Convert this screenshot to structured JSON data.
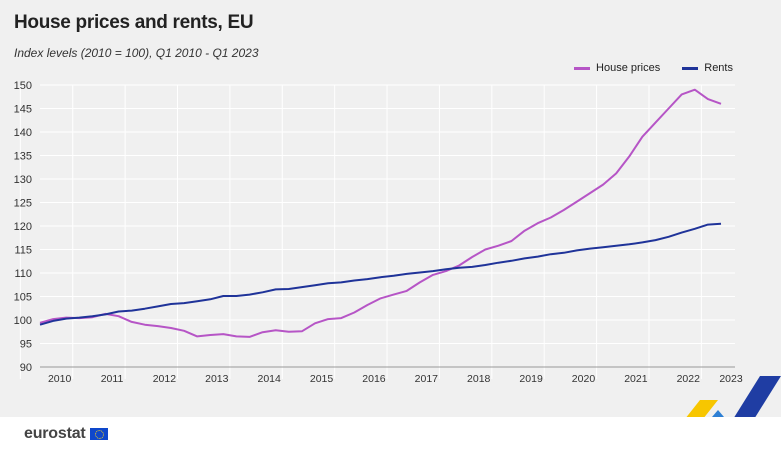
{
  "header": {
    "title": "House prices and rents, EU",
    "subtitle": "Index levels (2010 = 100),  Q1 2010 - Q1 2023"
  },
  "legend": {
    "house_prices": "House prices",
    "rents": "Rents"
  },
  "colors": {
    "house_prices": "#b655c6",
    "rents": "#1f3399",
    "background": "#f0f0f0",
    "grid": "#ffffff"
  },
  "branding": {
    "logo_text": "eurostat"
  },
  "chart_data": {
    "type": "line",
    "title": "House prices and rents, EU",
    "subtitle": "Index levels (2010 = 100),  Q1 2010 - Q1 2023",
    "xlabel": "",
    "ylabel": "",
    "ylim": [
      90,
      150
    ],
    "yticks": [
      90,
      95,
      100,
      105,
      110,
      115,
      120,
      125,
      130,
      135,
      140,
      145,
      150
    ],
    "x_tick_labels": [
      "2010",
      "2011",
      "2012",
      "2013",
      "2014",
      "2015",
      "2016",
      "2017",
      "2018",
      "2019",
      "2020",
      "2021",
      "2022",
      "2023"
    ],
    "x": [
      "2010-Q1",
      "2010-Q2",
      "2010-Q3",
      "2010-Q4",
      "2011-Q1",
      "2011-Q2",
      "2011-Q3",
      "2011-Q4",
      "2012-Q1",
      "2012-Q2",
      "2012-Q3",
      "2012-Q4",
      "2013-Q1",
      "2013-Q2",
      "2013-Q3",
      "2013-Q4",
      "2014-Q1",
      "2014-Q2",
      "2014-Q3",
      "2014-Q4",
      "2015-Q1",
      "2015-Q2",
      "2015-Q3",
      "2015-Q4",
      "2016-Q1",
      "2016-Q2",
      "2016-Q3",
      "2016-Q4",
      "2017-Q1",
      "2017-Q2",
      "2017-Q3",
      "2017-Q4",
      "2018-Q1",
      "2018-Q2",
      "2018-Q3",
      "2018-Q4",
      "2019-Q1",
      "2019-Q2",
      "2019-Q3",
      "2019-Q4",
      "2020-Q1",
      "2020-Q2",
      "2020-Q3",
      "2020-Q4",
      "2021-Q1",
      "2021-Q2",
      "2021-Q3",
      "2021-Q4",
      "2022-Q1",
      "2022-Q2",
      "2022-Q3",
      "2022-Q4",
      "2023-Q1"
    ],
    "grid": true,
    "legend_position": "top-right",
    "series": [
      {
        "name": "House prices",
        "values": [
          99.4,
          100.2,
          100.5,
          100.4,
          100.6,
          101.3,
          100.8,
          99.6,
          99.0,
          98.7,
          98.3,
          97.7,
          96.5,
          96.8,
          97.0,
          96.5,
          96.4,
          97.4,
          97.8,
          97.5,
          97.6,
          99.3,
          100.2,
          100.4,
          101.6,
          103.2,
          104.6,
          105.4,
          106.2,
          108.0,
          109.6,
          110.4,
          111.6,
          113.4,
          115.0,
          115.8,
          116.8,
          119.0,
          120.6,
          121.8,
          123.4,
          125.2,
          127.0,
          128.8,
          131.2,
          134.8,
          139.0,
          142.0,
          145.0,
          148.0,
          149.0,
          147.0,
          146.0
        ]
      },
      {
        "name": "Rents",
        "values": [
          99.0,
          99.8,
          100.3,
          100.5,
          100.8,
          101.2,
          101.8,
          102.0,
          102.4,
          102.9,
          103.4,
          103.6,
          104.0,
          104.4,
          105.1,
          105.1,
          105.4,
          105.9,
          106.5,
          106.6,
          107.0,
          107.4,
          107.8,
          108.0,
          108.4,
          108.7,
          109.1,
          109.4,
          109.8,
          110.1,
          110.4,
          110.8,
          111.1,
          111.3,
          111.7,
          112.2,
          112.6,
          113.1,
          113.5,
          114.0,
          114.3,
          114.8,
          115.2,
          115.5,
          115.8,
          116.1,
          116.5,
          117.0,
          117.7,
          118.6,
          119.4,
          120.3,
          120.5
        ]
      }
    ]
  }
}
